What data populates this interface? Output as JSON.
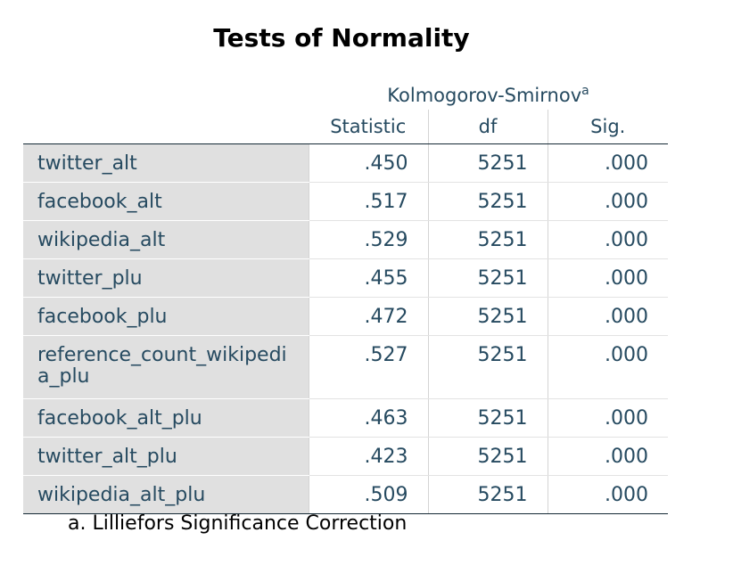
{
  "title": "Tests of Normality",
  "group_header": "Kolmogorov-Smirnov",
  "group_header_sup": "a",
  "columns": [
    "Statistic",
    "df",
    "Sig."
  ],
  "rows": [
    {
      "label": "twitter_alt",
      "statistic": ".450",
      "df": "5251",
      "sig": ".000"
    },
    {
      "label": "facebook_alt",
      "statistic": ".517",
      "df": "5251",
      "sig": ".000"
    },
    {
      "label": "wikipedia_alt",
      "statistic": ".529",
      "df": "5251",
      "sig": ".000"
    },
    {
      "label": "twitter_plu",
      "statistic": ".455",
      "df": "5251",
      "sig": ".000"
    },
    {
      "label": "facebook_plu",
      "statistic": ".472",
      "df": "5251",
      "sig": ".000"
    },
    {
      "label": "reference_count_wikipedia_plu",
      "statistic": ".527",
      "df": "5251",
      "sig": ".000"
    },
    {
      "label": "facebook_alt_plu",
      "statistic": ".463",
      "df": "5251",
      "sig": ".000"
    },
    {
      "label": "twitter_alt_plu",
      "statistic": ".423",
      "df": "5251",
      "sig": ".000"
    },
    {
      "label": "wikipedia_alt_plu",
      "statistic": ".509",
      "df": "5251",
      "sig": ".000"
    }
  ],
  "footnote": "a. Lilliefors Significance Correction"
}
